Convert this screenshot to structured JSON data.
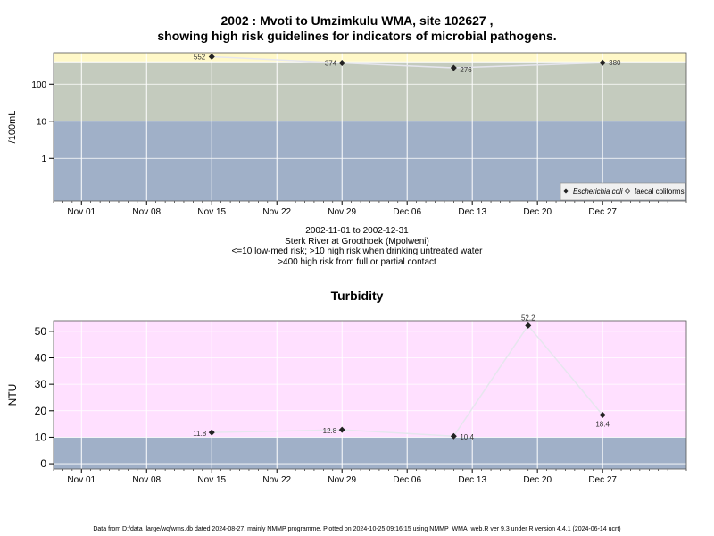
{
  "chart1": {
    "title_line1": "2002 : Mvoti to Umzimkulu WMA, site 102627 ,",
    "title_line2": "showing high risk guidelines for indicators of microbial pathogens.",
    "ylabel": "/100mL",
    "bands": {
      "low": "#a0b0c8",
      "mid": "#c4cbbe",
      "high": "#fff8c8"
    },
    "legend": [
      "Escherichia coli",
      "faecal coliforms"
    ],
    "below_lines": [
      "2002-11-01 to 2002-12-31",
      "Sterk River at Groothoek (Mpolweni)",
      "<=10 low-med risk; >10 high risk when drinking untreated water",
      ">400 high risk from full or partial contact"
    ]
  },
  "chart2": {
    "title": "Turbidity",
    "ylabel": "NTU",
    "bands": {
      "low": "#a0b0c8",
      "high": "#ffe0ff"
    }
  },
  "footer": "Data from D:/data_large/wq/wms.db dated 2024-08-27, mainly NMMP programme. Plotted on 2024-10-25 09:16:15 using NMMP_WMA_web.R ver 9.3 under R version 4.4.1 (2024-06-14 ucrt)",
  "chart_data": [
    {
      "type": "line",
      "title": "2002 : Mvoti to Umzimkulu WMA, site 102627 , showing high risk guidelines for indicators of microbial pathogens.",
      "ylabel": "/100mL",
      "yscale": "log",
      "xlim": [
        "2002-10-29",
        "2003-01-05"
      ],
      "ylim_log10": [
        -1.15,
        2.85
      ],
      "yticks": [
        1,
        10,
        100
      ],
      "xticks": [
        "2002-11-01",
        "2002-11-08",
        "2002-11-15",
        "2002-11-22",
        "2002-11-29",
        "2002-12-06",
        "2002-12-13",
        "2002-12-20",
        "2002-12-27"
      ],
      "xtick_labels": [
        "Nov 01",
        "Nov 08",
        "Nov 15",
        "Nov 22",
        "Nov 29",
        "Dec 06",
        "Dec 13",
        "Dec 20",
        "Dec 27"
      ],
      "thresholds": [
        10,
        400
      ],
      "grid": true,
      "legend_position": "bottom-right",
      "series": [
        {
          "name": "Escherichia coli",
          "x": [
            "2002-11-15",
            "2002-11-29",
            "2002-12-11",
            "2002-12-27"
          ],
          "values": [
            552,
            374,
            276,
            380
          ]
        }
      ]
    },
    {
      "type": "line",
      "title": "Turbidity",
      "ylabel": "NTU",
      "xlim": [
        "2002-10-29",
        "2003-01-05"
      ],
      "ylim": [
        -2,
        54
      ],
      "yticks": [
        0,
        10,
        20,
        30,
        40,
        50
      ],
      "xticks": [
        "2002-11-01",
        "2002-11-08",
        "2002-11-15",
        "2002-11-22",
        "2002-11-29",
        "2002-12-06",
        "2002-12-13",
        "2002-12-20",
        "2002-12-27"
      ],
      "xtick_labels": [
        "Nov 01",
        "Nov 08",
        "Nov 15",
        "Nov 22",
        "Nov 29",
        "Dec 06",
        "Dec 13",
        "Dec 20",
        "Dec 27"
      ],
      "thresholds": [
        10
      ],
      "grid": true,
      "series": [
        {
          "x": [
            "2002-11-15",
            "2002-11-29",
            "2002-12-11",
            "2002-12-19",
            "2002-12-27"
          ],
          "values": [
            11.8,
            12.8,
            10.4,
            52.2,
            18.4
          ]
        }
      ]
    }
  ]
}
